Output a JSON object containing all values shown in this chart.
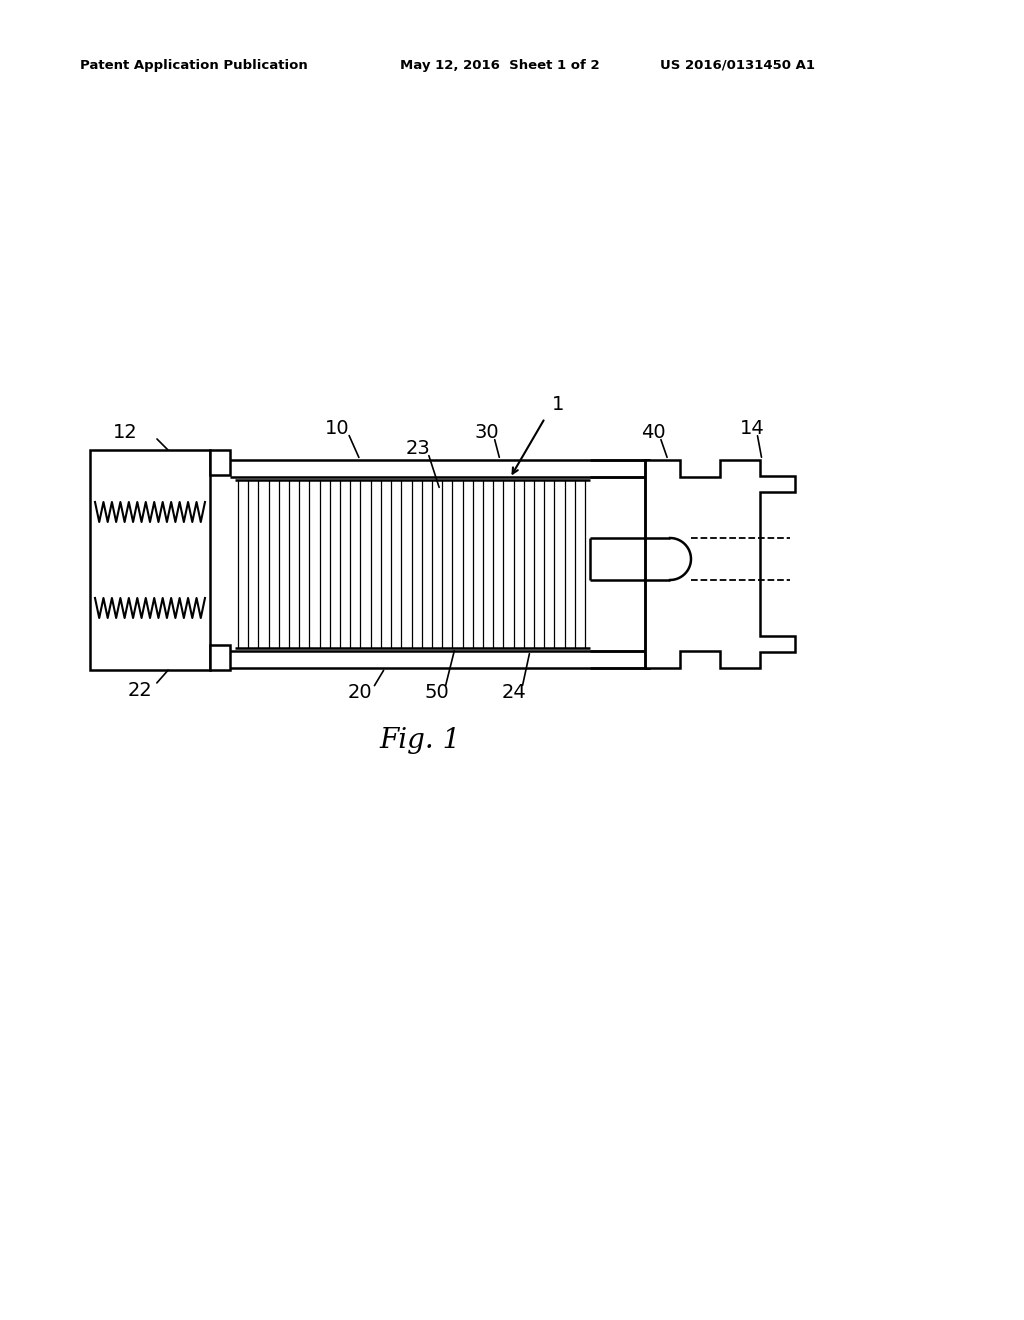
{
  "bg_color": "#ffffff",
  "line_color": "#000000",
  "header_left": "Patent Application Publication",
  "header_mid": "May 12, 2016  Sheet 1 of 2",
  "header_right": "US 2016/0131450 A1",
  "fig_label": "Fig. 1",
  "gray": "#aaaaaa"
}
